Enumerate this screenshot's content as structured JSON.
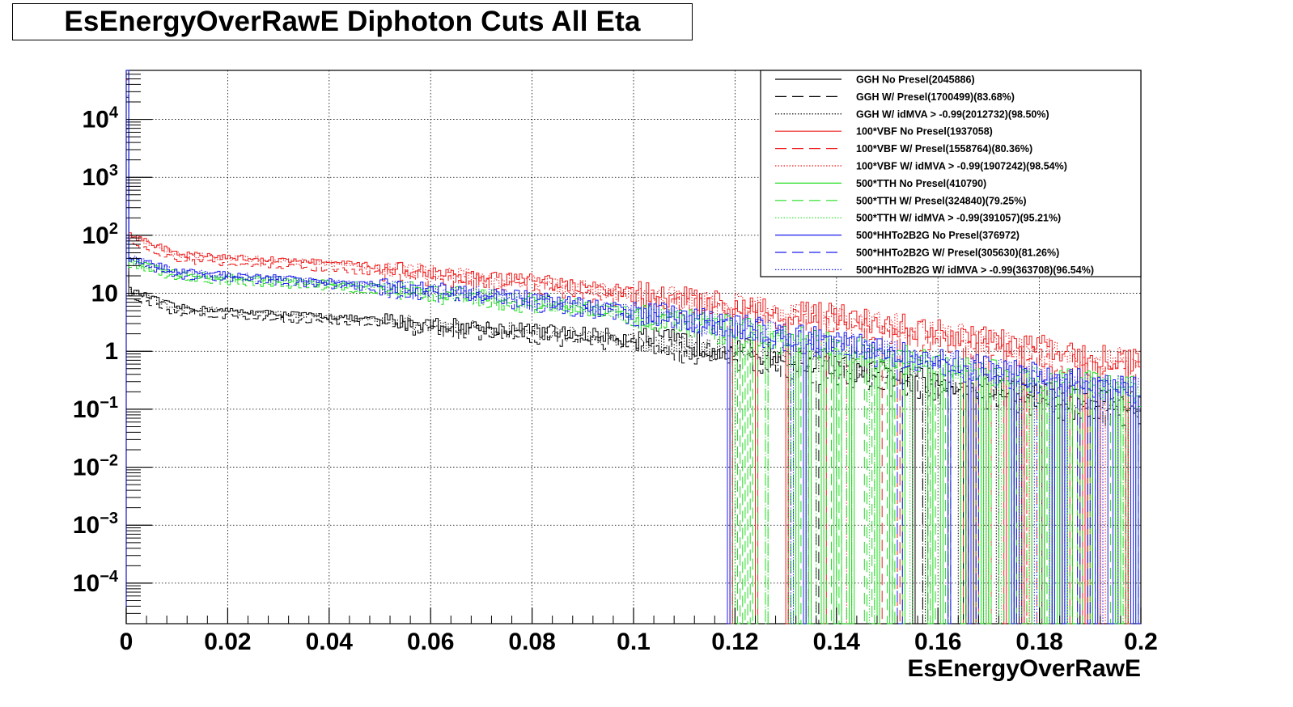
{
  "chart_data": {
    "type": "line",
    "title": "EsEnergyOverRawE Diphoton Cuts All Eta",
    "xlabel": "EsEnergyOverRawE",
    "ylabel": "",
    "xlim": [
      0,
      0.2
    ],
    "ylim": [
      2e-05,
      70000
    ],
    "yscale": "log",
    "grid": true,
    "legend_position": "top-right",
    "x_ticks": [
      "0",
      "0.02",
      "0.04",
      "0.06",
      "0.08",
      "0.1",
      "0.12",
      "0.14",
      "0.16",
      "0.18",
      "0.2"
    ],
    "y_ticks": [
      {
        "value": 0.0001,
        "base": "10",
        "exp": "−4"
      },
      {
        "value": 0.001,
        "base": "10",
        "exp": "−3"
      },
      {
        "value": 0.01,
        "base": "10",
        "exp": "−2"
      },
      {
        "value": 0.1,
        "base": "10",
        "exp": "−1"
      },
      {
        "value": 1,
        "base": "1",
        "exp": ""
      },
      {
        "value": 10,
        "base": "10",
        "exp": ""
      },
      {
        "value": 100,
        "base": "10",
        "exp": "2"
      },
      {
        "value": 1000,
        "base": "10",
        "exp": "3"
      },
      {
        "value": 10000,
        "base": "10",
        "exp": "4"
      }
    ],
    "x": [
      0.0,
      0.01,
      0.02,
      0.03,
      0.04,
      0.05,
      0.06,
      0.07,
      0.08,
      0.09,
      0.1,
      0.11,
      0.12,
      0.13,
      0.14,
      0.15,
      0.16,
      0.17,
      0.18,
      0.19,
      0.2
    ],
    "series": [
      {
        "name": "GGH No Presel(2045886)",
        "color": "#000000",
        "dash": "solid",
        "values": [
          12,
          5.8,
          5.0,
          4.5,
          4.0,
          3.5,
          3.0,
          2.6,
          2.3,
          2.0,
          1.7,
          1.4,
          1.1,
          0.8,
          0.55,
          0.4,
          0.3,
          0.25,
          0.2,
          0.15,
          0.12
        ]
      },
      {
        "name": "GGH W/ Presel(1700499)(83.68%)",
        "color": "#000000",
        "dash": "longdash",
        "values": [
          9,
          4.6,
          4.0,
          3.6,
          3.2,
          2.8,
          2.4,
          2.1,
          1.8,
          1.5,
          1.25,
          1.0,
          0.75,
          0.55,
          0.38,
          0.28,
          0.2,
          0.16,
          0.12,
          0.09,
          0.07
        ]
      },
      {
        "name": "GGH W/ idMVA > -0.99(2012732)(98.50%)",
        "color": "#000000",
        "dash": "dot",
        "values": [
          11.5,
          5.7,
          4.9,
          4.4,
          3.9,
          3.4,
          2.9,
          2.5,
          2.2,
          1.9,
          1.6,
          1.35,
          1.05,
          0.75,
          0.52,
          0.38,
          0.28,
          0.24,
          0.19,
          0.14,
          0.11
        ]
      },
      {
        "name": "100*VBF No Presel(1937058)",
        "color": "#ee1c1c",
        "dash": "solid",
        "values": [
          110,
          48,
          42,
          38,
          34,
          29,
          24,
          19,
          16,
          13,
          10,
          8,
          6.5,
          5,
          4,
          3,
          2.2,
          1.6,
          1.2,
          0.9,
          0.7
        ]
      },
      {
        "name": "100*VBF W/ Presel(1558764)(80.36%)",
        "color": "#ee1c1c",
        "dash": "longdash",
        "values": [
          80,
          37,
          33,
          29,
          26,
          22,
          18,
          14.5,
          12,
          9.5,
          7.5,
          6,
          4.8,
          3.6,
          2.8,
          2.1,
          1.5,
          1.1,
          0.8,
          0.6,
          0.45
        ]
      },
      {
        "name": "100*VBF W/ idMVA > -0.99(1907242)(98.54%)",
        "color": "#ee1c1c",
        "dash": "dot",
        "values": [
          105,
          47,
          41,
          37,
          33,
          28,
          23,
          18.5,
          15.5,
          12.5,
          9.6,
          7.7,
          6.2,
          4.8,
          3.8,
          2.9,
          2.1,
          1.5,
          1.1,
          0.85,
          0.65
        ]
      },
      {
        "name": "500*TTH No Presel(410790)",
        "color": "#22dd22",
        "dash": "solid",
        "values": [
          40,
          22,
          19,
          17,
          15,
          13,
          11,
          9,
          7.5,
          6,
          4.5,
          3.5,
          2.5,
          1.8,
          1.3,
          0.9,
          0.6,
          0.45,
          0.35,
          0.28,
          0.22
        ]
      },
      {
        "name": "500*TTH W/ Presel(324840)(79.25%)",
        "color": "#22dd22",
        "dash": "longdash",
        "values": [
          32,
          18,
          15.5,
          14,
          12.5,
          10.5,
          9,
          7.4,
          6,
          4.8,
          3.6,
          2.8,
          2.0,
          1.4,
          1.0,
          0.7,
          0.48,
          0.36,
          0.28,
          0.22,
          0.17
        ]
      },
      {
        "name": "500*TTH W/ idMVA > -0.99(391057)(95.21%)",
        "color": "#22dd22",
        "dash": "dot",
        "values": [
          38,
          21,
          18,
          16.5,
          14.5,
          12.5,
          10.5,
          8.6,
          7.2,
          5.7,
          4.3,
          3.3,
          2.4,
          1.7,
          1.2,
          0.85,
          0.57,
          0.43,
          0.33,
          0.26,
          0.2
        ]
      },
      {
        "name": "500*HHTo2B2G No Presel(376972)",
        "color": "#1c1cee",
        "dash": "solid",
        "values": [
          45,
          24,
          21,
          19,
          16,
          14,
          12,
          10,
          8,
          6.3,
          4.8,
          3.7,
          2.8,
          2.0,
          1.4,
          1.0,
          0.7,
          0.5,
          0.38,
          0.3,
          0.22
        ]
      },
      {
        "name": "500*HHTo2B2G W/ Presel(305630)(81.26%)",
        "color": "#1c1cee",
        "dash": "longdash",
        "values": [
          36,
          20,
          17.5,
          15.5,
          13.5,
          11.5,
          9.8,
          8.1,
          6.5,
          5.1,
          3.9,
          3.0,
          2.3,
          1.6,
          1.1,
          0.8,
          0.56,
          0.4,
          0.3,
          0.24,
          0.18
        ]
      },
      {
        "name": "500*HHTo2B2G W/ idMVA > -0.99(363708)(96.54%)",
        "color": "#1c1cee",
        "dash": "dot",
        "values": [
          43,
          23.5,
          20.5,
          18.5,
          15.5,
          13.5,
          11.6,
          9.7,
          7.8,
          6.1,
          4.6,
          3.6,
          2.7,
          1.9,
          1.35,
          0.97,
          0.68,
          0.48,
          0.37,
          0.29,
          0.21
        ]
      }
    ]
  }
}
